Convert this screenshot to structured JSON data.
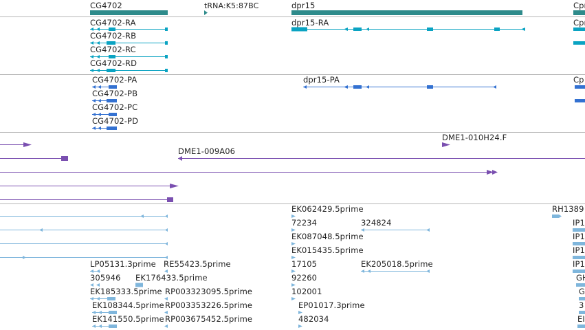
{
  "colors": {
    "gene": "#2e8b8b",
    "transcript": "#0aa3c2",
    "protein": "#3371d1",
    "clone": "#7a4fb0",
    "est": "#7fb6dc",
    "separator": "#b4b4b4"
  },
  "tracks": {
    "gene": {
      "labels": [
        "CG4702",
        "tRNA:K5:87BC",
        "dpr15",
        "Cpr"
      ]
    },
    "transcripts": {
      "labels": [
        "CG4702-RA",
        "CG4702-RB",
        "CG4702-RC",
        "CG4702-RD",
        "dpr15-RA",
        "Cpr"
      ]
    },
    "proteins": {
      "labels": [
        "CG4702-PA",
        "CG4702-PB",
        "CG4702-PC",
        "CG4702-PD",
        "dpr15-PA",
        "Cp"
      ]
    },
    "clones": {
      "labels": [
        "DME1-010H24.F",
        "DME1-009A06"
      ]
    },
    "ests": {
      "labels": [
        "EK062429.5prime",
        "RH1389",
        "72234",
        "324824",
        "IP1",
        "EK087048.5prime",
        "IP1",
        "EK015435.5prime",
        "IP1",
        "LP05131.3prime",
        "RE55423.5prime",
        "17105",
        "EK205018.5prime",
        "IP1",
        "305946",
        "EK176433.5prime",
        "92260",
        "GH",
        "EK185333.5prime",
        "RP003323095.5prime",
        "102001",
        "G",
        "EK108344.5prime",
        "RP003353226.5prime",
        "EP01017.3prime",
        "3",
        "EK141550.5prime",
        "RP003675452.5prime",
        "482034",
        "EI"
      ]
    }
  }
}
